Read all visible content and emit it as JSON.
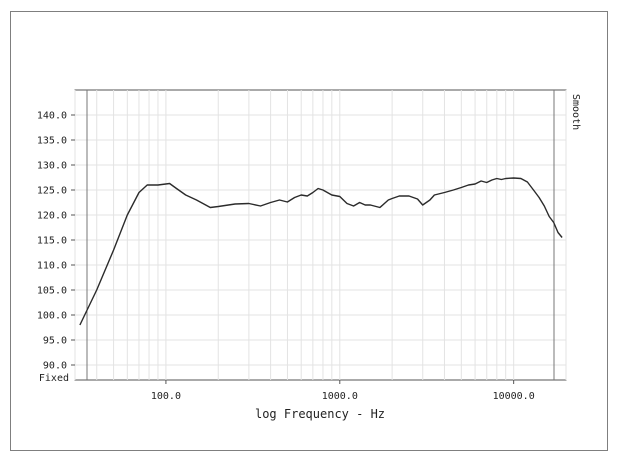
{
  "chart_data": {
    "type": "line",
    "title": "",
    "xlabel": "log Frequency - Hz",
    "ylabel": "",
    "x_scale": "log",
    "xlim": [
      30,
      20000
    ],
    "ylim": [
      87,
      145
    ],
    "x_ticks": [
      {
        "value": 100,
        "label": "100.0"
      },
      {
        "value": 1000,
        "label": "1000.0"
      },
      {
        "value": 10000,
        "label": "10000.0"
      }
    ],
    "y_ticks": [
      {
        "value": 140,
        "label": "140.0"
      },
      {
        "value": 135,
        "label": "135.0"
      },
      {
        "value": 130,
        "label": "130.0"
      },
      {
        "value": 125,
        "label": "125.0"
      },
      {
        "value": 120,
        "label": "120.0"
      },
      {
        "value": 115,
        "label": "115.0"
      },
      {
        "value": 110,
        "label": "110.0"
      },
      {
        "value": 105,
        "label": "105.0"
      },
      {
        "value": 100,
        "label": "100.0"
      },
      {
        "value": 95,
        "label": "95.0"
      },
      {
        "value": 90,
        "label": "90.0"
      }
    ],
    "y_bottom_label": "Fixed",
    "right_label": "Smooth",
    "grid": true,
    "series": [
      {
        "x": [
          32,
          40,
          50,
          60,
          70,
          78,
          90,
          105,
          115,
          130,
          150,
          180,
          200,
          250,
          300,
          350,
          400,
          450,
          500,
          550,
          600,
          650,
          700,
          750,
          800,
          900,
          1000,
          1100,
          1200,
          1300,
          1400,
          1500,
          1700,
          1900,
          2000,
          2200,
          2500,
          2800,
          3000,
          3300,
          3500,
          4000,
          4500,
          5000,
          5500,
          6000,
          6500,
          7000,
          7500,
          8000,
          8500,
          9000,
          10000,
          11000,
          12000,
          13000,
          14000,
          15000,
          16000,
          17000,
          18000,
          19000
        ],
        "y": [
          98,
          105,
          113,
          120,
          124.5,
          126,
          126,
          126.3,
          125.3,
          124,
          123,
          121.5,
          121.7,
          122.2,
          122.3,
          121.8,
          122.5,
          123,
          122.6,
          123.5,
          124,
          123.8,
          124.5,
          125.3,
          125,
          124,
          123.7,
          122.3,
          121.8,
          122.5,
          122,
          122,
          121.5,
          123,
          123.3,
          123.8,
          123.8,
          123.2,
          122,
          123,
          124,
          124.5,
          125,
          125.5,
          126,
          126.2,
          126.8,
          126.5,
          127,
          127.3,
          127.1,
          127.3,
          127.4,
          127.3,
          126.6,
          125,
          123.5,
          121.8,
          119.7,
          118.5,
          116.5,
          115.5
        ]
      }
    ]
  }
}
